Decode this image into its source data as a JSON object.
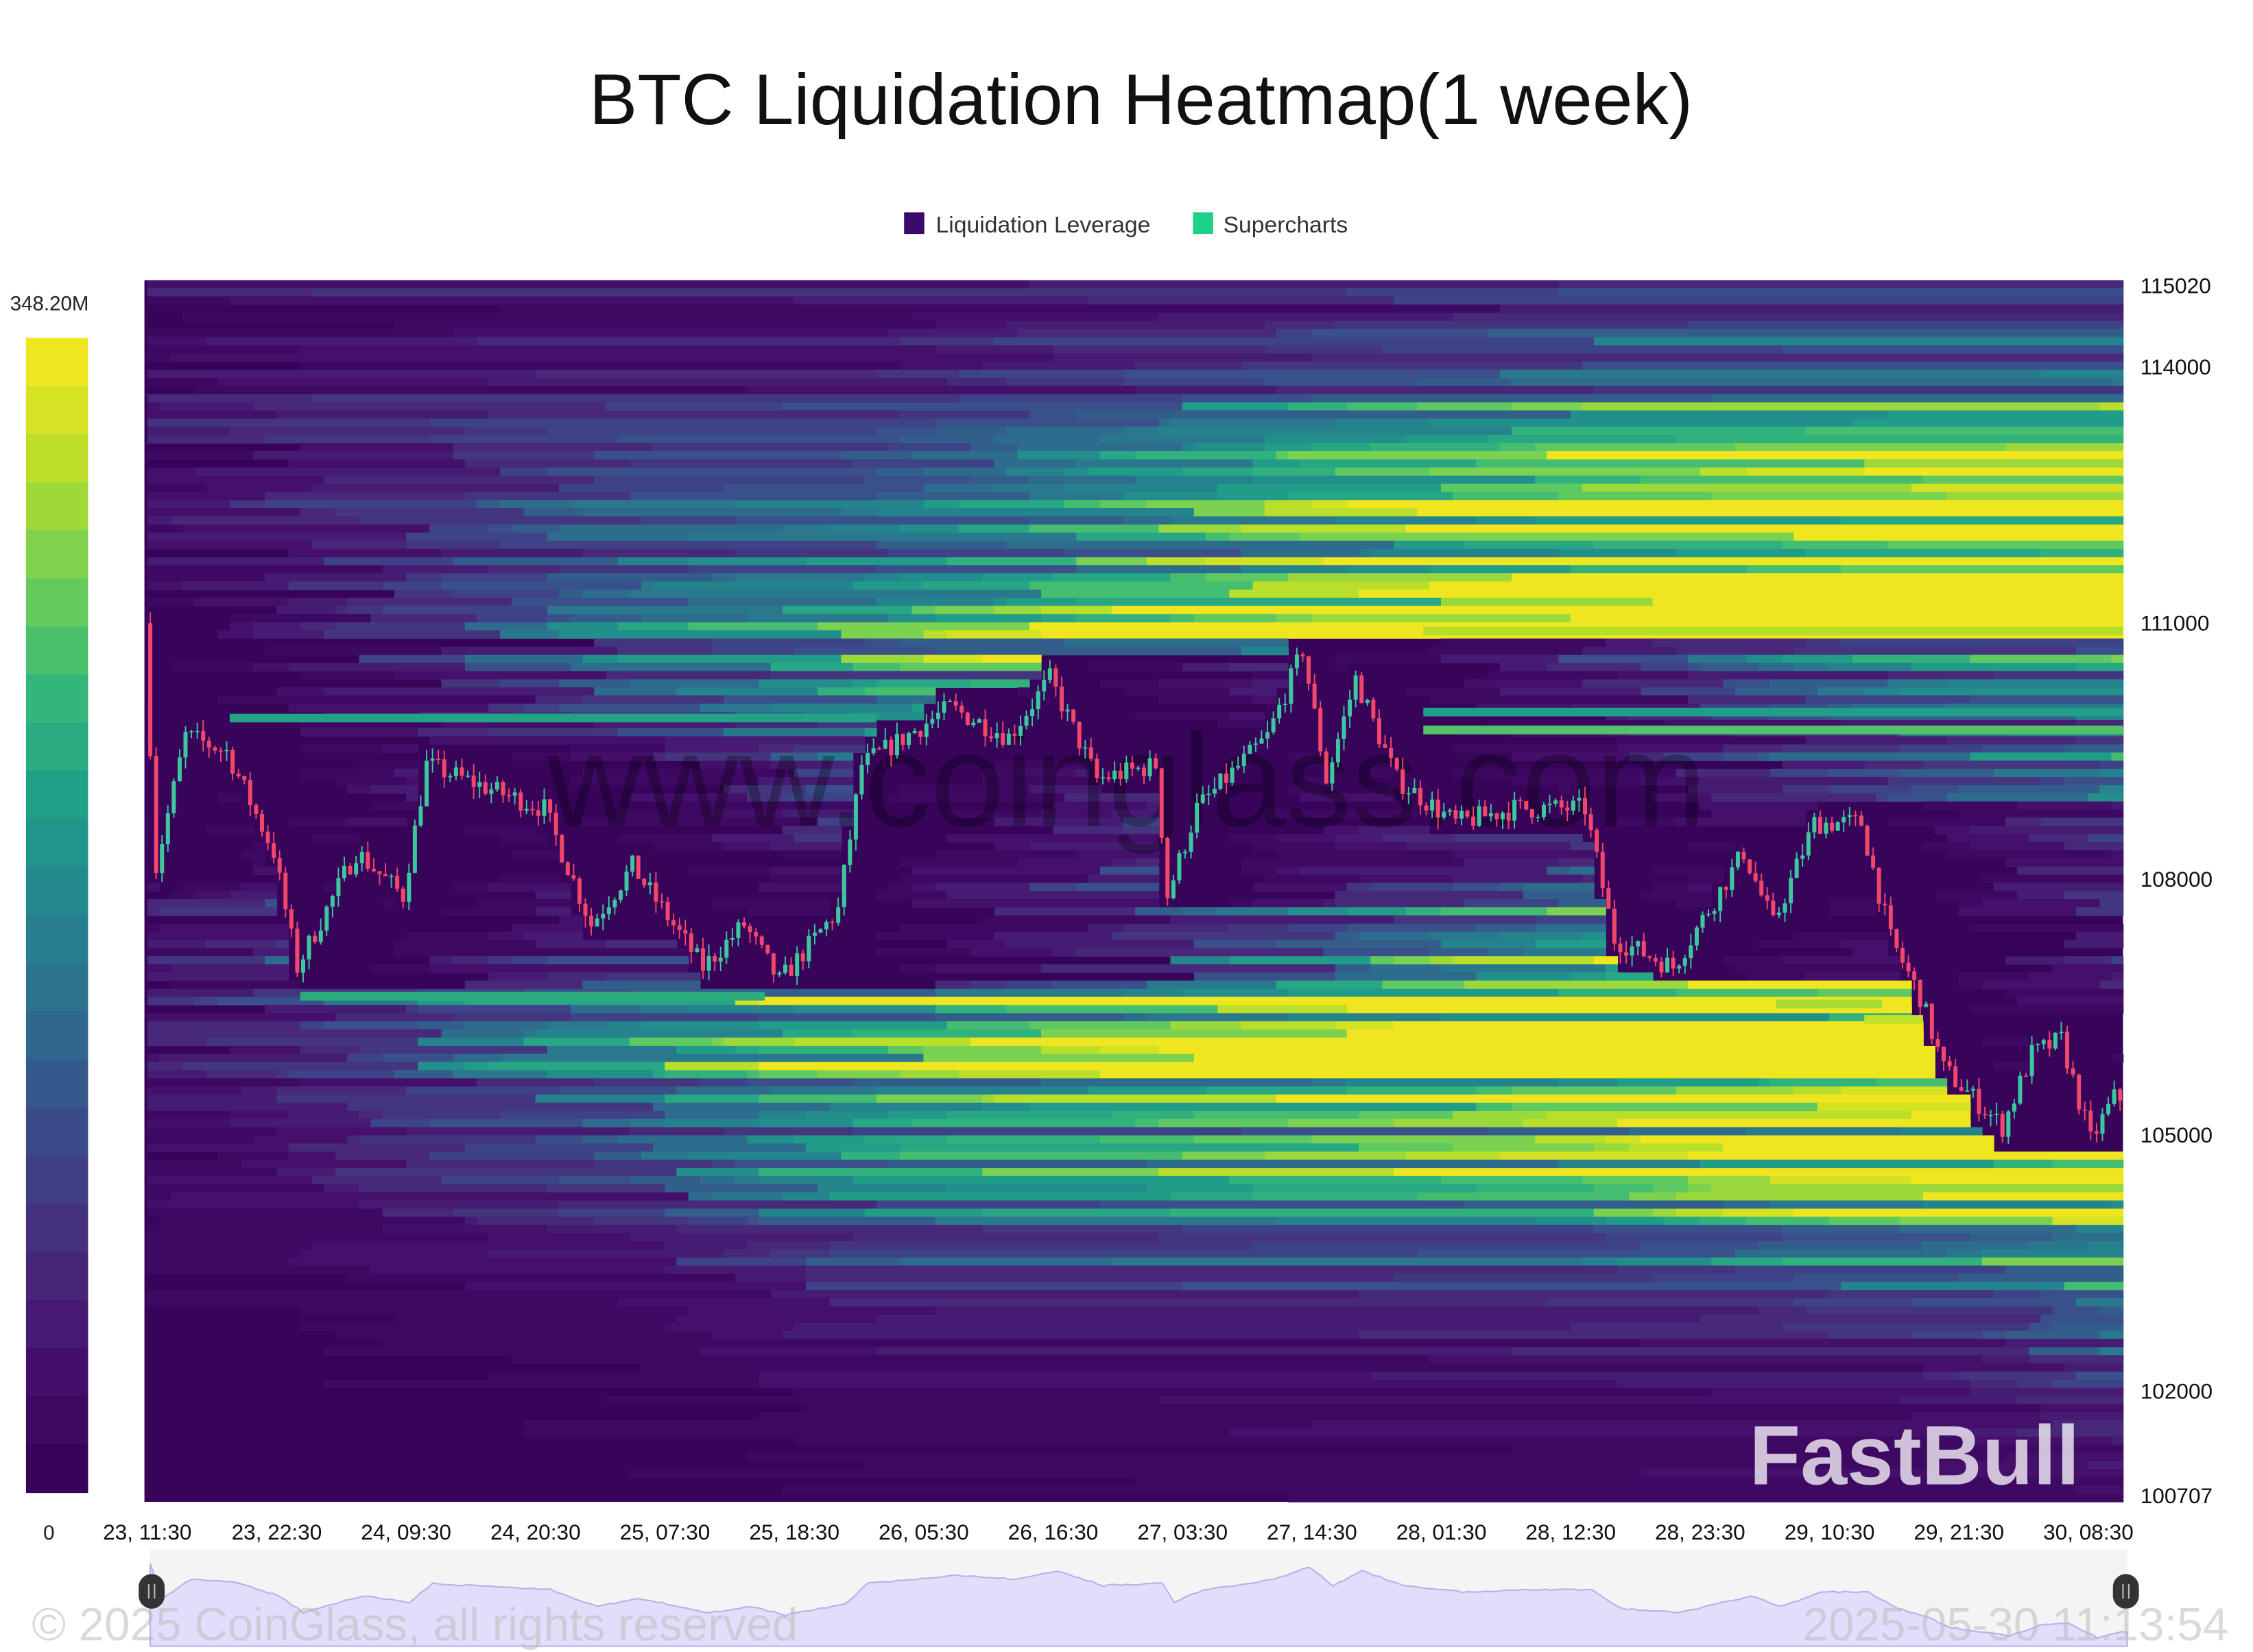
{
  "chart_data": {
    "type": "heatmap",
    "title": "BTC Liquidation Heatmap(1 week)",
    "legend": {
      "placement": "top-center",
      "items": [
        {
          "label": "Liquidation Leverage",
          "color": "#3a0a6a"
        },
        {
          "label": "Supercharts",
          "color": "#1fd08a"
        }
      ]
    },
    "colorbar": {
      "min_label": "0",
      "max_label": "348.20M",
      "min": 0,
      "max": 348200000,
      "colormap": "viridis",
      "placement": "left"
    },
    "y_axis": {
      "range": [
        100707,
        115020
      ],
      "ticks": [
        "115020",
        "114000",
        "111000",
        "108000",
        "105000",
        "102000",
        "100707"
      ],
      "tick_values": [
        115020,
        114000,
        111000,
        108000,
        105000,
        102000,
        100707
      ],
      "placement": "right"
    },
    "x_axis": {
      "range": [
        "2025-05-23 11:30",
        "2025-05-30 11:30"
      ],
      "ticks": [
        "23, 11:30",
        "23, 22:30",
        "24, 09:30",
        "24, 20:30",
        "25, 07:30",
        "25, 18:30",
        "26, 05:30",
        "26, 16:30",
        "27, 03:30",
        "27, 14:30",
        "28, 01:30",
        "28, 12:30",
        "28, 23:30",
        "29, 10:30",
        "29, 21:30",
        "30, 08:30"
      ]
    },
    "price_series": [
      {
        "t": "2025-05-23 11:30",
        "close": 111000
      },
      {
        "t": "2025-05-23 12:30",
        "close": 108150
      },
      {
        "t": "2025-05-23 15:00",
        "close": 109680
      },
      {
        "t": "2025-05-23 18:30",
        "close": 109500
      },
      {
        "t": "2025-05-23 22:30",
        "close": 108320
      },
      {
        "t": "2025-05-24 00:30",
        "close": 106970
      },
      {
        "t": "2025-05-24 05:30",
        "close": 108320
      },
      {
        "t": "2025-05-24 09:30",
        "close": 107810
      },
      {
        "t": "2025-05-24 11:30",
        "close": 109340
      },
      {
        "t": "2025-05-24 18:00",
        "close": 109000
      },
      {
        "t": "2025-05-24 21:30",
        "close": 108830
      },
      {
        "t": "2025-05-25 01:30",
        "close": 107470
      },
      {
        "t": "2025-05-25 05:00",
        "close": 108150
      },
      {
        "t": "2025-05-25 11:00",
        "close": 106970
      },
      {
        "t": "2025-05-25 14:30",
        "close": 107470
      },
      {
        "t": "2025-05-25 17:30",
        "close": 106800
      },
      {
        "t": "2025-05-25 22:30",
        "close": 107640
      },
      {
        "t": "2025-05-26 00:30",
        "close": 109340
      },
      {
        "t": "2025-05-26 08:00",
        "close": 110010
      },
      {
        "t": "2025-05-26 13:00",
        "close": 109670
      },
      {
        "t": "2025-05-26 16:30",
        "close": 110350
      },
      {
        "t": "2025-05-26 20:30",
        "close": 109170
      },
      {
        "t": "2025-05-27 01:30",
        "close": 109340
      },
      {
        "t": "2025-05-27 02:30",
        "close": 107810
      },
      {
        "t": "2025-05-27 05:00",
        "close": 108830
      },
      {
        "t": "2025-05-27 11:00",
        "close": 109670
      },
      {
        "t": "2025-05-27 14:00",
        "close": 110690
      },
      {
        "t": "2025-05-27 16:00",
        "close": 109170
      },
      {
        "t": "2025-05-27 18:30",
        "close": 110350
      },
      {
        "t": "2025-05-27 22:00",
        "close": 109170
      },
      {
        "t": "2025-05-28 03:00",
        "close": 108660
      },
      {
        "t": "2025-05-28 08:00",
        "close": 108830
      },
      {
        "t": "2025-05-28 14:00",
        "close": 108830
      },
      {
        "t": "2025-05-28 16:30",
        "close": 107300
      },
      {
        "t": "2025-05-28 21:30",
        "close": 106970
      },
      {
        "t": "2025-05-29 03:30",
        "close": 108320
      },
      {
        "t": "2025-05-29 06:00",
        "close": 107470
      },
      {
        "t": "2025-05-29 09:30",
        "close": 108660
      },
      {
        "t": "2025-05-29 13:30",
        "close": 108660
      },
      {
        "t": "2025-05-29 16:00",
        "close": 107300
      },
      {
        "t": "2025-05-29 18:30",
        "close": 106630
      },
      {
        "t": "2025-05-29 20:30",
        "close": 105780
      },
      {
        "t": "2025-05-30 01:30",
        "close": 105100
      },
      {
        "t": "2025-05-30 04:00",
        "close": 105950
      },
      {
        "t": "2025-05-30 06:30",
        "close": 106120
      },
      {
        "t": "2025-05-30 09:00",
        "close": 104940
      },
      {
        "t": "2025-05-30 11:00",
        "close": 105440
      }
    ],
    "key_liquidation_bands": [
      {
        "price": 110910,
        "from": "2025-05-28 00:00",
        "to": "2025-05-30 11:30",
        "intensity": 0.9
      },
      {
        "price": 109890,
        "from": "2025-05-23 18:30",
        "to": "2025-05-26 01:30",
        "intensity": 0.62
      },
      {
        "price": 109960,
        "from": "2025-05-28 00:00",
        "to": "2025-05-30 11:30",
        "intensity": 0.6
      },
      {
        "price": 109750,
        "from": "2025-05-28 00:00",
        "to": "2025-05-30 11:30",
        "intensity": 0.75
      },
      {
        "price": 106630,
        "from": "2025-05-24 00:30",
        "to": "2025-05-25 16:00",
        "intensity": 0.66
      },
      {
        "price": 106540,
        "from": "2025-05-29 06:00",
        "to": "2025-05-29 15:00",
        "intensity": 0.88
      },
      {
        "price": 106360,
        "from": "2025-05-29 13:30",
        "to": "2025-05-29 18:30",
        "intensity": 0.92
      }
    ],
    "candle_colors": {
      "up": "#3cc79e",
      "down": "#f0476a"
    },
    "grid": false
  },
  "watermarks": {
    "center": "www.coinglass.com",
    "corner": "FastBull",
    "copyright": "© 2025 CoinGlass, all rights reserved",
    "timestamp": "2025-05-30 11:13:54"
  },
  "navigator": {
    "fill": "#e2ddfb"
  }
}
